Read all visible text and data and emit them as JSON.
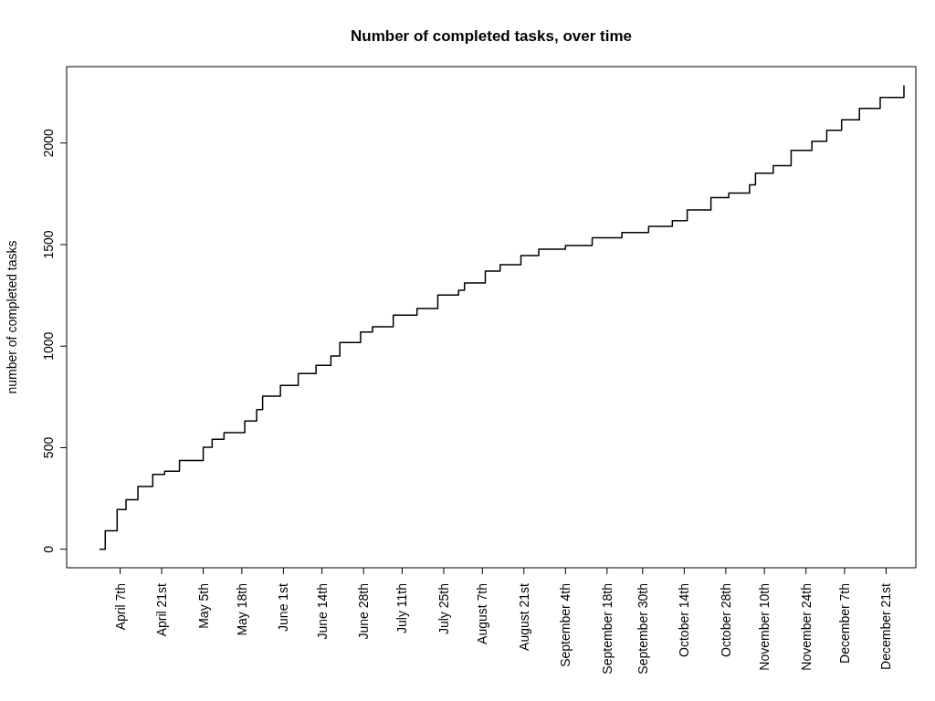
{
  "chart_data": {
    "type": "step",
    "title": "Number of completed tasks, over time",
    "ylabel": "number of completed tasks",
    "x": [
      "--03-31",
      "--04-02",
      "--04-06",
      "--04-09",
      "--04-13",
      "--04-18",
      "--04-22",
      "--04-27",
      "--05-05",
      "--05-08",
      "--05-12",
      "--05-19",
      "--05-23",
      "--05-25",
      "--05-31",
      "--06-06",
      "--06-12",
      "--06-17",
      "--06-20",
      "--06-27",
      "--07-01",
      "--07-08",
      "--07-16",
      "--07-23",
      "--07-30",
      "--08-01",
      "--08-08",
      "--08-13",
      "--08-20",
      "--08-26",
      "--09-04",
      "--09-13",
      "--09-23",
      "--10-02",
      "--10-10",
      "--10-15",
      "--10-23",
      "--10-29",
      "--11-05",
      "--11-07",
      "--11-13",
      "--11-19",
      "--11-26",
      "--12-01",
      "--12-06",
      "--12-12",
      "--12-19",
      "--12-27"
    ],
    "series": [
      {
        "color": "#000000",
        "values": [
          0,
          91,
          196,
          244,
          309,
          369,
          384,
          437,
          502,
          542,
          574,
          631,
          687,
          754,
          807,
          865,
          905,
          952,
          1018,
          1069,
          1095,
          1153,
          1185,
          1252,
          1275,
          1311,
          1369,
          1401,
          1446,
          1477,
          1495,
          1533,
          1559,
          1590,
          1618,
          1671,
          1731,
          1754,
          1794,
          1851,
          1889,
          1964,
          2009,
          2063,
          2114,
          2170,
          2224,
          2284
        ]
      }
    ],
    "xlim": [
      "--03-20",
      "--12-31"
    ],
    "xticks": [
      {
        "value": "--04-07",
        "label": "April 7th"
      },
      {
        "value": "--04-21",
        "label": "April 21st"
      },
      {
        "value": "--05-05",
        "label": "May 5th"
      },
      {
        "value": "--05-18",
        "label": "May 18th"
      },
      {
        "value": "--06-01",
        "label": "June 1st"
      },
      {
        "value": "--06-14",
        "label": "June 14th"
      },
      {
        "value": "--06-28",
        "label": "June 28th"
      },
      {
        "value": "--07-11",
        "label": "July 11th"
      },
      {
        "value": "--07-25",
        "label": "July 25th"
      },
      {
        "value": "--08-07",
        "label": "August 7th"
      },
      {
        "value": "--08-21",
        "label": "August 21st"
      },
      {
        "value": "--09-04",
        "label": "September 4th"
      },
      {
        "value": "--09-18",
        "label": "September 18th"
      },
      {
        "value": "--09-30",
        "label": "September 30th"
      },
      {
        "value": "--10-14",
        "label": "October 14th"
      },
      {
        "value": "--10-28",
        "label": "October 28th"
      },
      {
        "value": "--11-10",
        "label": "November 10th"
      },
      {
        "value": "--11-24",
        "label": "November 24th"
      },
      {
        "value": "--12-07",
        "label": "December 7th"
      },
      {
        "value": "--12-21",
        "label": "December 21st"
      }
    ],
    "ylim": [
      -91,
      2376
    ],
    "yticks": [
      0,
      500,
      1000,
      1500,
      2000
    ],
    "grid": false,
    "line_style": "solid",
    "marker": "none"
  }
}
